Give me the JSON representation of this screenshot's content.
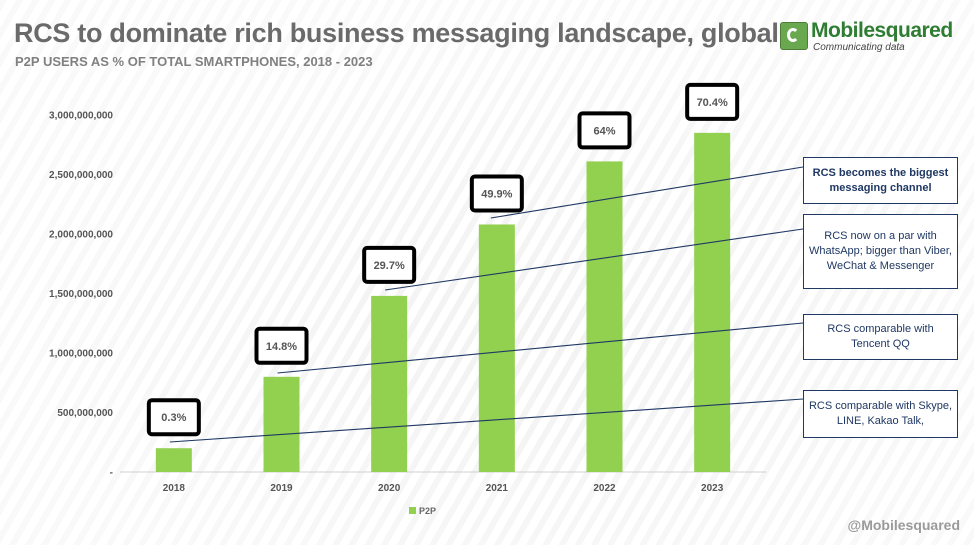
{
  "header": {
    "title": "RCS to dominate rich business messaging landscape, global",
    "subtitle": "P2P USERS AS % OF TOTAL SMARTPHONES, 2018 - 2023"
  },
  "logo": {
    "name": "Mobilesquared",
    "tagline": "Communicating data"
  },
  "footer": {
    "handle": "@Mobilesquared"
  },
  "annotations": [
    {
      "text": "RCS becomes the biggest messaging channel",
      "bold": true
    },
    {
      "text": "RCS now on a par with WhatsApp; bigger than Viber, WeChat & Messenger",
      "bold": false
    },
    {
      "text": "RCS comparable with Tencent QQ",
      "bold": false
    },
    {
      "text": "RCS comparable with Skype, LINE, Kakao Talk,",
      "bold": false
    }
  ],
  "colors": {
    "bar": "#92d050",
    "line": "#1f3864",
    "callout_border": "#000000"
  },
  "chart_data": {
    "type": "bar",
    "categories": [
      "2018",
      "2019",
      "2020",
      "2021",
      "2022",
      "2023"
    ],
    "series": [
      {
        "name": "P2P",
        "values": [
          200000000,
          800000000,
          1480000000,
          2080000000,
          2610000000,
          2850000000
        ],
        "labels": [
          "0.3%",
          "14.8%",
          "29.7%",
          "49.9%",
          "64%",
          "70.4%"
        ]
      }
    ],
    "ylim": [
      0,
      3000000000
    ],
    "yticks": [
      {
        "value": 0,
        "label": "-"
      },
      {
        "value": 500000000,
        "label": "500,000,000"
      },
      {
        "value": 1000000000,
        "label": "1,000,000,000"
      },
      {
        "value": 1500000000,
        "label": "1,500,000,000"
      },
      {
        "value": 2000000000,
        "label": "2,000,000,000"
      },
      {
        "value": 2500000000,
        "label": "2,500,000,000"
      },
      {
        "value": 3000000000,
        "label": "3,000,000,000"
      }
    ],
    "grid": false,
    "legend": "bottom"
  }
}
